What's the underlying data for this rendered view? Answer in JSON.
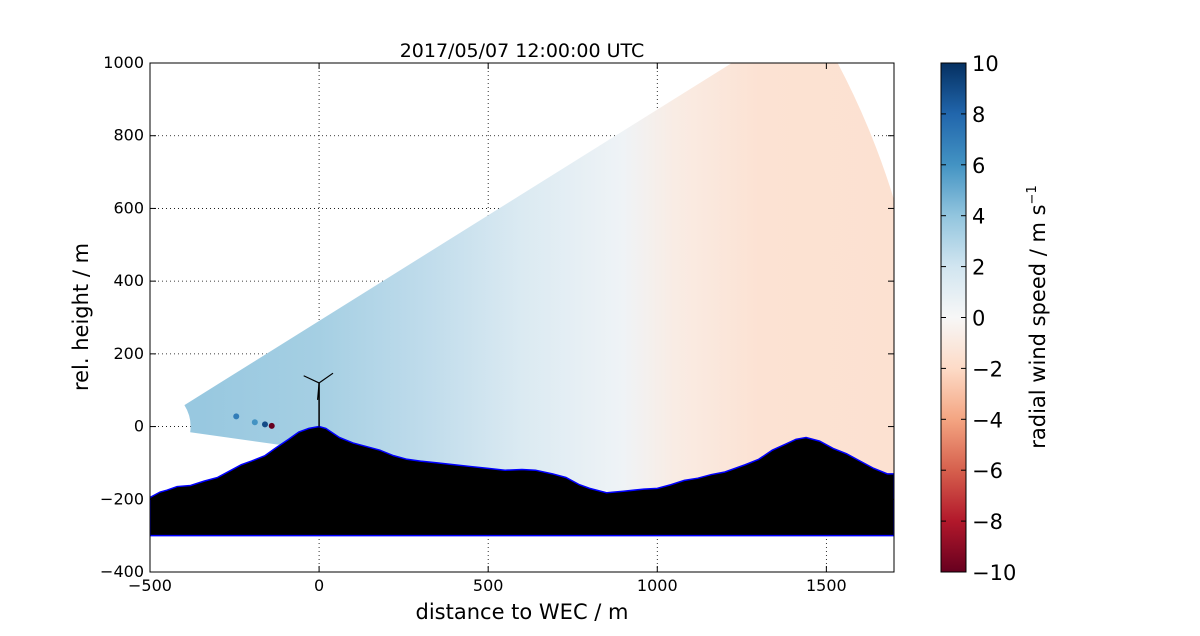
{
  "chart_data": {
    "type": "heatmap",
    "title": "2017/05/07 12:00:00 UTC",
    "xlabel": "distance to WEC / m",
    "ylabel": "rel. height / m",
    "xlim": [
      -500,
      1700
    ],
    "ylim": [
      -400,
      1000
    ],
    "xticks": [
      -500,
      0,
      500,
      1000,
      1500
    ],
    "yticks": [
      -400,
      -200,
      0,
      200,
      400,
      600,
      800,
      1000
    ],
    "grid": true,
    "colorbar": {
      "label": "radial wind speed / m s",
      "label_superscript": "−1",
      "range": [
        -10,
        10
      ],
      "ticks": [
        10,
        8,
        6,
        4,
        2,
        0,
        -2,
        -4,
        -6,
        -8,
        -10
      ],
      "colormap": "RdBu",
      "negative_color_end": "#67001f",
      "positive_color_end": "#053061"
    },
    "scan_sector": {
      "origin": [
        -500,
        0
      ],
      "range_min_m": 120,
      "range_max_m": 2300,
      "elevation_min_deg": -8,
      "elevation_max_deg": 32,
      "radial_speed_profile": [
        {
          "x": -350,
          "v": 3.8
        },
        {
          "x": 0,
          "v": 3.4
        },
        {
          "x": 300,
          "v": 2.6
        },
        {
          "x": 600,
          "v": 1.5
        },
        {
          "x": 900,
          "v": 0.4
        },
        {
          "x": 1050,
          "v": -0.8
        },
        {
          "x": 1300,
          "v": -1.5
        },
        {
          "x": 1700,
          "v": -1.6
        }
      ]
    },
    "terrain": {
      "color": "#000000",
      "outline_color": "#0000ff",
      "base_height": -300,
      "profile": [
        [
          -500,
          -195
        ],
        [
          -470,
          -180
        ],
        [
          -450,
          -175
        ],
        [
          -420,
          -165
        ],
        [
          -380,
          -162
        ],
        [
          -340,
          -150
        ],
        [
          -300,
          -140
        ],
        [
          -260,
          -120
        ],
        [
          -230,
          -105
        ],
        [
          -200,
          -95
        ],
        [
          -160,
          -80
        ],
        [
          -130,
          -60
        ],
        [
          -90,
          -35
        ],
        [
          -60,
          -15
        ],
        [
          -30,
          -5
        ],
        [
          0,
          0
        ],
        [
          20,
          -5
        ],
        [
          60,
          -30
        ],
        [
          100,
          -45
        ],
        [
          140,
          -55
        ],
        [
          180,
          -65
        ],
        [
          220,
          -80
        ],
        [
          260,
          -90
        ],
        [
          300,
          -95
        ],
        [
          350,
          -100
        ],
        [
          400,
          -105
        ],
        [
          450,
          -110
        ],
        [
          500,
          -115
        ],
        [
          550,
          -120
        ],
        [
          600,
          -118
        ],
        [
          640,
          -120
        ],
        [
          690,
          -130
        ],
        [
          730,
          -140
        ],
        [
          770,
          -160
        ],
        [
          800,
          -170
        ],
        [
          850,
          -182
        ],
        [
          900,
          -178
        ],
        [
          960,
          -172
        ],
        [
          1000,
          -170
        ],
        [
          1040,
          -160
        ],
        [
          1080,
          -148
        ],
        [
          1120,
          -142
        ],
        [
          1160,
          -132
        ],
        [
          1200,
          -125
        ],
        [
          1260,
          -105
        ],
        [
          1300,
          -90
        ],
        [
          1340,
          -65
        ],
        [
          1380,
          -48
        ],
        [
          1410,
          -35
        ],
        [
          1440,
          -30
        ],
        [
          1480,
          -40
        ],
        [
          1520,
          -60
        ],
        [
          1560,
          -75
        ],
        [
          1600,
          -95
        ],
        [
          1640,
          -115
        ],
        [
          1680,
          -130
        ],
        [
          1700,
          -130
        ]
      ]
    },
    "turbine": {
      "x": 0,
      "hub_height": 120
    },
    "extra_points": [
      {
        "x": -245,
        "y": 28,
        "v": 7
      },
      {
        "x": -190,
        "y": 12,
        "v": 6
      },
      {
        "x": -160,
        "y": 6,
        "v": 9
      },
      {
        "x": -140,
        "y": 2,
        "v": -10
      }
    ]
  }
}
